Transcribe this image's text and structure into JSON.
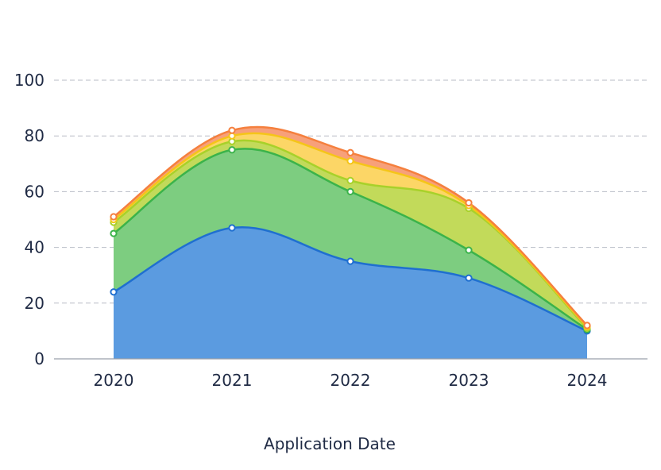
{
  "chart_data": {
    "type": "area",
    "stacked": true,
    "smooth": true,
    "title": "",
    "xlabel": "Application Date",
    "ylabel": "",
    "categories": [
      "2020",
      "2021",
      "2022",
      "2023",
      "2024"
    ],
    "ylim": [
      0,
      100
    ],
    "yticks": [
      0,
      20,
      40,
      60,
      80,
      100
    ],
    "grid": "horizontal dashed",
    "series": [
      {
        "values": [
          24,
          47,
          35,
          29,
          10
        ],
        "color": "#1f6fd0",
        "fill": "#5b9be0"
      },
      {
        "values": [
          21,
          28,
          25,
          10,
          0.5
        ],
        "color": "#3bb34a",
        "fill": "#7dcd80"
      },
      {
        "values": [
          4,
          3,
          4,
          15,
          0.5
        ],
        "color": "#a8d12a",
        "fill": "#c2da5a"
      },
      {
        "values": [
          1,
          2,
          7,
          1,
          0.5
        ],
        "color": "#f5c518",
        "fill": "#fcd666"
      },
      {
        "values": [
          1,
          2,
          3,
          1,
          0.5
        ],
        "color": "#f5803e",
        "fill": "#f7a07a"
      }
    ]
  }
}
